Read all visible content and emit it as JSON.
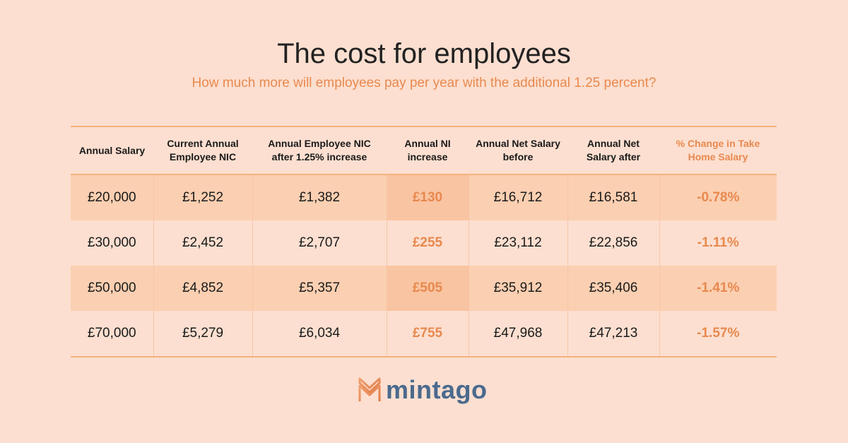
{
  "title": "The cost for employees",
  "subtitle": "How much more will employees pay per year with the additional 1.25 percent?",
  "table": {
    "headers": [
      "Annual Salary",
      "Current Annual Employee NIC",
      "Annual Employee NIC after 1.25% increase",
      "Annual NI increase",
      "Annual Net Salary before",
      "Annual Net Salary after",
      "% Change in Take Home Salary"
    ],
    "rows": [
      [
        "£20,000",
        "£1,252",
        "£1,382",
        "£130",
        "£16,712",
        "£16,581",
        "-0.78%"
      ],
      [
        "£30,000",
        "£2,452",
        "£2,707",
        "£255",
        "£23,112",
        "£22,856",
        "-1.11%"
      ],
      [
        "£50,000",
        "£4,852",
        "£5,357",
        "£505",
        "£35,912",
        "£35,406",
        "-1.41%"
      ],
      [
        "£70,000",
        "£5,279",
        "£6,034",
        "£755",
        "£47,968",
        "£47,213",
        "-1.57%"
      ]
    ]
  },
  "logo": {
    "text": "mintago",
    "icon": "mintago-logo-icon"
  },
  "colors": {
    "background": "#fcdfd0",
    "accent": "#e8894f",
    "row_shade": "#fbcfb1",
    "rule": "#f4b27d",
    "logo_text": "#4a6a8e"
  }
}
